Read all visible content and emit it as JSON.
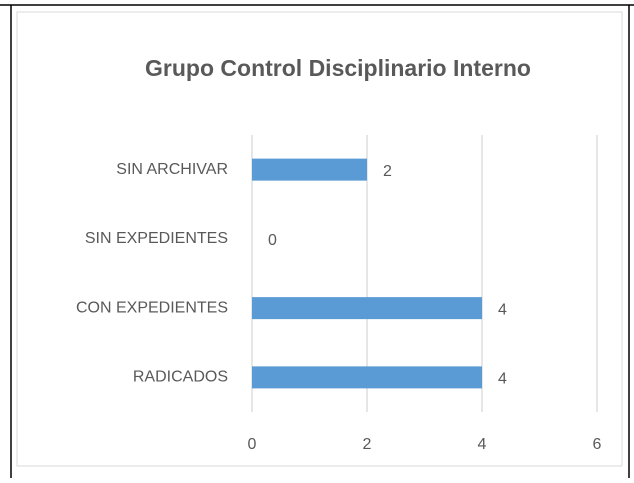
{
  "chart_data": {
    "type": "bar",
    "orientation": "horizontal",
    "title": "Grupo Control Disciplinario Interno",
    "categories": [
      "SIN ARCHIVAR",
      "SIN EXPEDIENTES",
      "CON EXPEDIENTES",
      "RADICADOS"
    ],
    "values": [
      2,
      0,
      4,
      4
    ],
    "color": "#5b9bd5",
    "xlim": [
      0,
      6
    ],
    "xticks": [
      0,
      2,
      4,
      6
    ],
    "grid": true
  }
}
